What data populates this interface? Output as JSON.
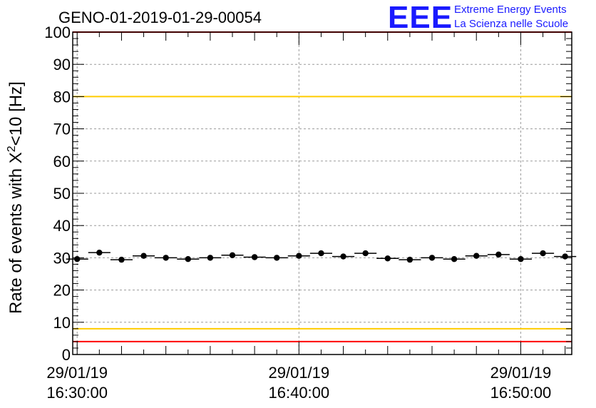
{
  "chart_data": {
    "type": "scatter",
    "title": "GENO-01-2019-01-29-00054",
    "ylabel": "Rate of events with X",
    "ylabel_sup": "2",
    "ylabel_tail": "<10 [Hz]",
    "ylim": [
      0,
      100
    ],
    "y_ticks": [
      0,
      10,
      20,
      30,
      40,
      50,
      60,
      70,
      80,
      90,
      100
    ],
    "x_range_min": [
      -0.2,
      22.3
    ],
    "x_ticks": [
      {
        "pos": 0,
        "line1": "29/01/19",
        "line2": "16:30:00"
      },
      {
        "pos": 10,
        "line1": "29/01/19",
        "line2": "16:40:00"
      },
      {
        "pos": 20,
        "line1": "29/01/19",
        "line2": "16:50:00"
      }
    ],
    "bin_width_min": 1,
    "points": [
      {
        "x": 0,
        "y": 29.6
      },
      {
        "x": 1,
        "y": 31.6
      },
      {
        "x": 2,
        "y": 29.4
      },
      {
        "x": 3,
        "y": 30.6
      },
      {
        "x": 4,
        "y": 30.0
      },
      {
        "x": 5,
        "y": 29.6
      },
      {
        "x": 6,
        "y": 30.0
      },
      {
        "x": 7,
        "y": 30.8
      },
      {
        "x": 8,
        "y": 30.2
      },
      {
        "x": 9,
        "y": 30.0
      },
      {
        "x": 10,
        "y": 30.6
      },
      {
        "x": 11,
        "y": 31.4
      },
      {
        "x": 12,
        "y": 30.4
      },
      {
        "x": 13,
        "y": 31.4
      },
      {
        "x": 14,
        "y": 29.8
      },
      {
        "x": 15,
        "y": 29.4
      },
      {
        "x": 16,
        "y": 30.0
      },
      {
        "x": 17,
        "y": 29.6
      },
      {
        "x": 18,
        "y": 30.6
      },
      {
        "x": 19,
        "y": 31.0
      },
      {
        "x": 20,
        "y": 29.6
      },
      {
        "x": 21,
        "y": 31.4
      },
      {
        "x": 22,
        "y": 30.4
      }
    ],
    "reference_lines": [
      {
        "name": "upper-red-limit",
        "y": 100,
        "color": "#ff0000"
      },
      {
        "name": "upper-yellow-limit",
        "y": 80,
        "color": "#ffcc00"
      },
      {
        "name": "lower-yellow-limit",
        "y": 8,
        "color": "#ffcc00"
      },
      {
        "name": "lower-red-limit",
        "y": 4,
        "color": "#ff0000"
      }
    ],
    "grid": true
  },
  "logo": {
    "mark": "EEE",
    "line1": "Extreme Energy Events",
    "line2": "La Scienza nelle Scuole",
    "color": "#1a1aff"
  }
}
